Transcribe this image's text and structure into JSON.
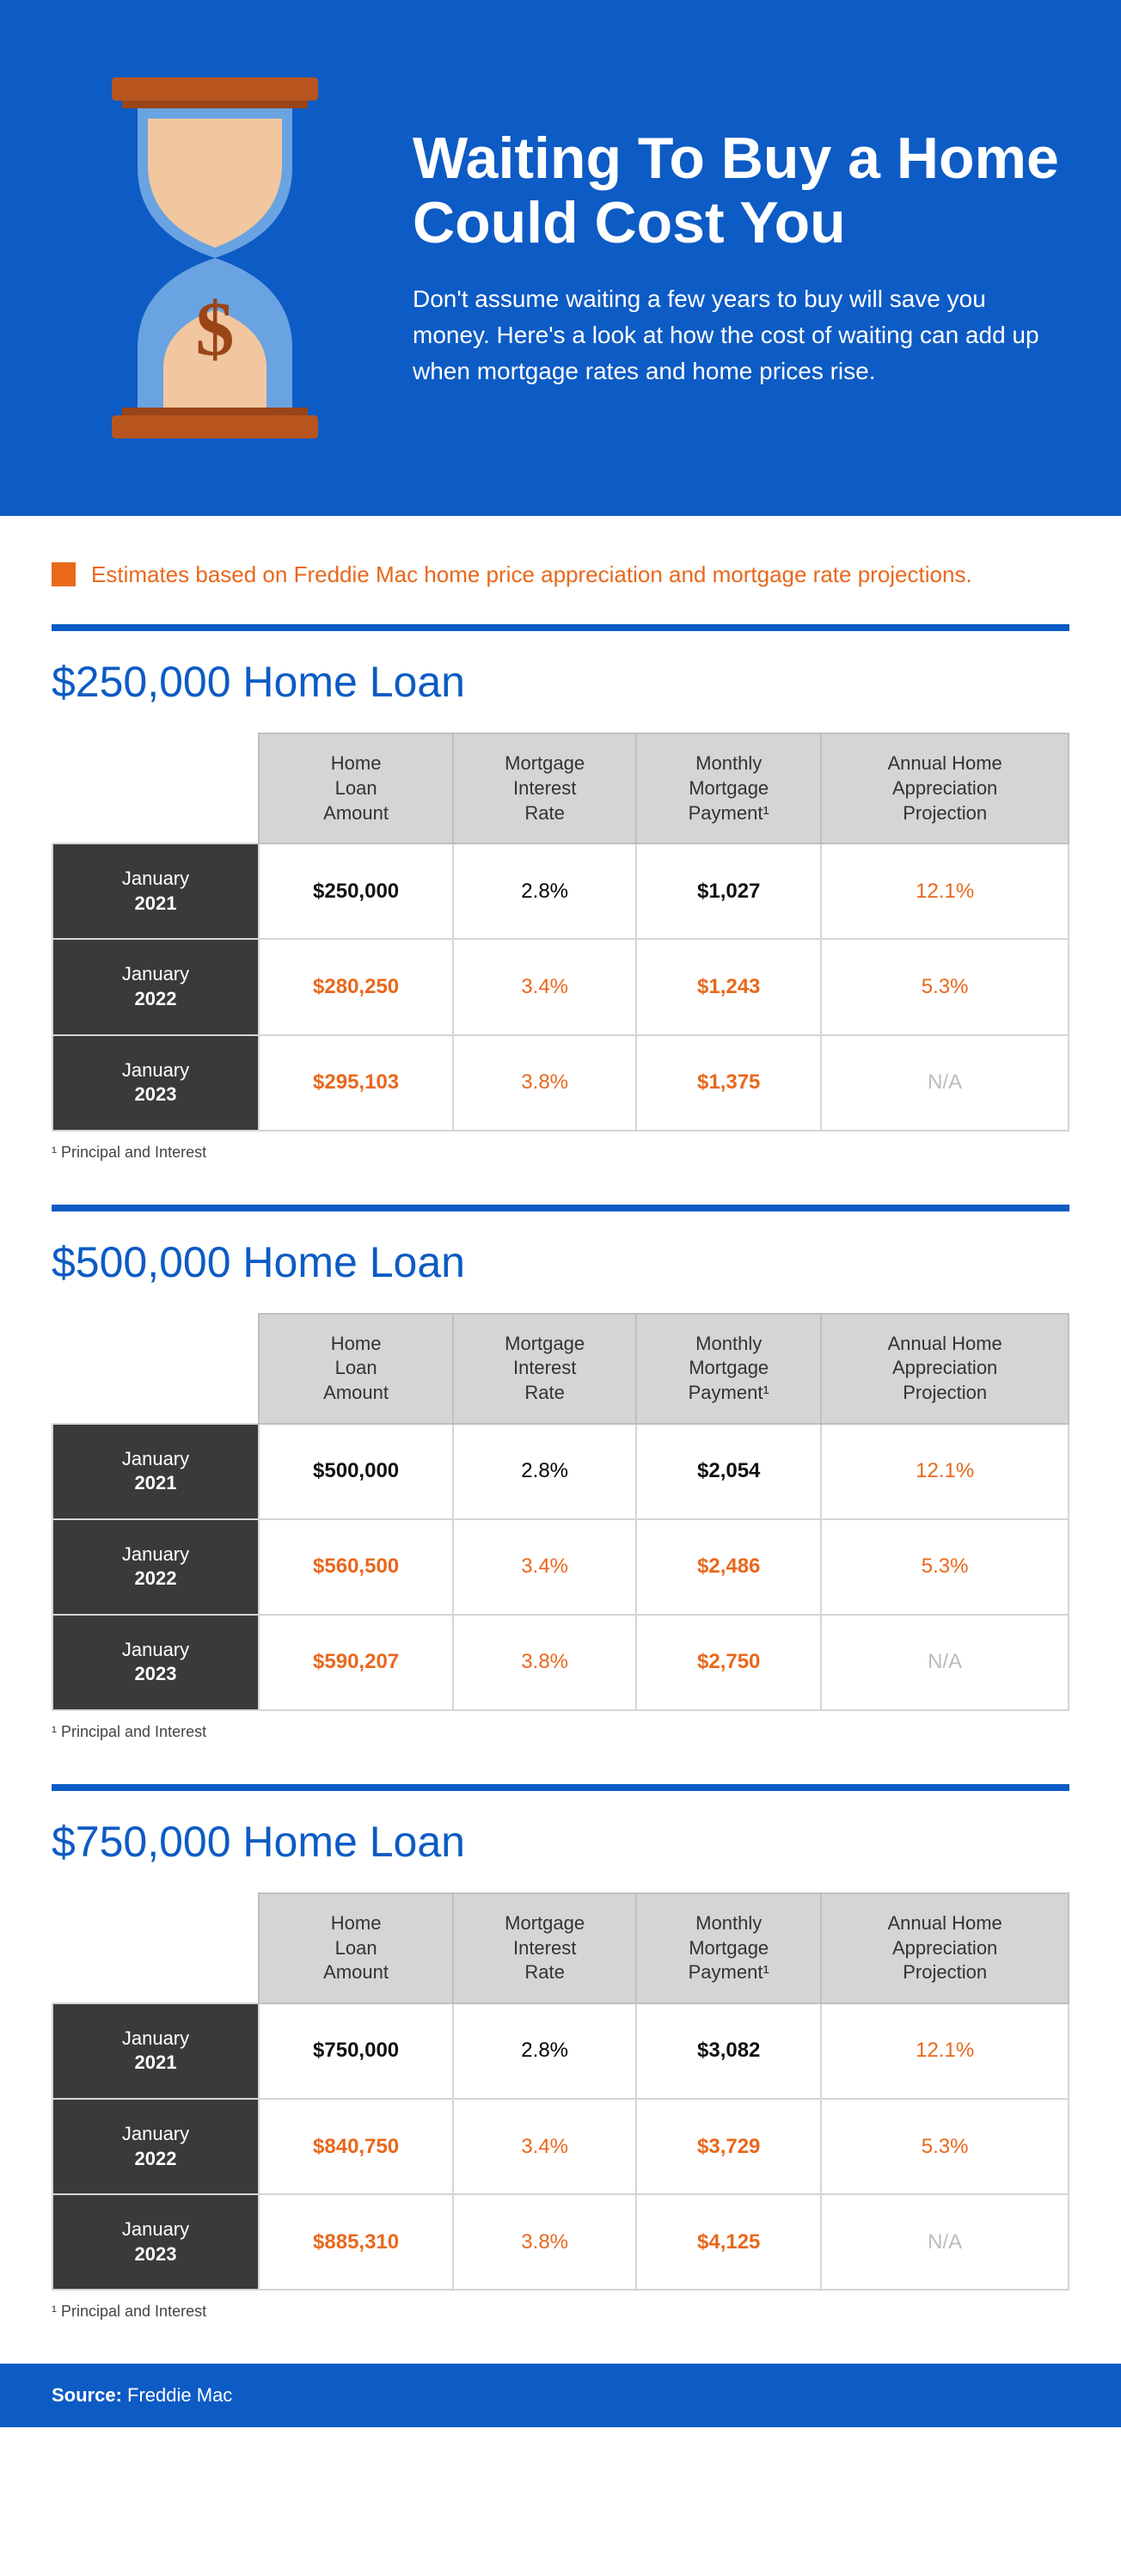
{
  "colors": {
    "primary_blue": "#0d5bc4",
    "orange": "#e8681c",
    "dark_row": "#3a3a3a",
    "header_gray": "#d5d5d5",
    "border_gray": "#bfbfbf",
    "na_gray": "#bcbcbc",
    "white": "#ffffff",
    "hourglass_base": "#b8551e",
    "sand": "#f2c7a0"
  },
  "hero": {
    "title": "Waiting To Buy a Home Could Cost You",
    "subtitle": "Don't assume waiting a few years to buy will save you money. Here's a look at how the cost of waiting can add up when mortgage rates and home prices rise."
  },
  "note": "Estimates based on Freddie Mac home price appreciation and mortgage rate projections.",
  "columns": [
    "Home Loan Amount",
    "Mortgage Interest Rate",
    "Monthly Mortgage Payment¹",
    "Annual Home Appreciation Projection"
  ],
  "footnote": "¹ Principal and Interest",
  "source_label": "Source:",
  "source_value": " Freddie Mac",
  "sections": [
    {
      "title": "$250,000 Home Loan",
      "rows": [
        {
          "month": "January",
          "year": "2021",
          "amount": "$250,000",
          "rate": "2.8%",
          "payment": "$1,027",
          "appreciation": "12.1%",
          "is_base": true
        },
        {
          "month": "January",
          "year": "2022",
          "amount": "$280,250",
          "rate": "3.4%",
          "payment": "$1,243",
          "appreciation": "5.3%",
          "is_base": false
        },
        {
          "month": "January",
          "year": "2023",
          "amount": "$295,103",
          "rate": "3.8%",
          "payment": "$1,375",
          "appreciation": "N/A",
          "is_base": false
        }
      ]
    },
    {
      "title": "$500,000 Home Loan",
      "rows": [
        {
          "month": "January",
          "year": "2021",
          "amount": "$500,000",
          "rate": "2.8%",
          "payment": "$2,054",
          "appreciation": "12.1%",
          "is_base": true
        },
        {
          "month": "January",
          "year": "2022",
          "amount": "$560,500",
          "rate": "3.4%",
          "payment": "$2,486",
          "appreciation": "5.3%",
          "is_base": false
        },
        {
          "month": "January",
          "year": "2023",
          "amount": "$590,207",
          "rate": "3.8%",
          "payment": "$2,750",
          "appreciation": "N/A",
          "is_base": false
        }
      ]
    },
    {
      "title": "$750,000 Home Loan",
      "rows": [
        {
          "month": "January",
          "year": "2021",
          "amount": "$750,000",
          "rate": "2.8%",
          "payment": "$3,082",
          "appreciation": "12.1%",
          "is_base": true
        },
        {
          "month": "January",
          "year": "2022",
          "amount": "$840,750",
          "rate": "3.4%",
          "payment": "$3,729",
          "appreciation": "5.3%",
          "is_base": false
        },
        {
          "month": "January",
          "year": "2023",
          "amount": "$885,310",
          "rate": "3.8%",
          "payment": "$4,125",
          "appreciation": "N/A",
          "is_base": false
        }
      ]
    }
  ],
  "typography": {
    "hero_title_size": 68,
    "hero_subtitle_size": 28,
    "section_title_size": 50,
    "table_cell_size": 24,
    "footnote_size": 18
  }
}
